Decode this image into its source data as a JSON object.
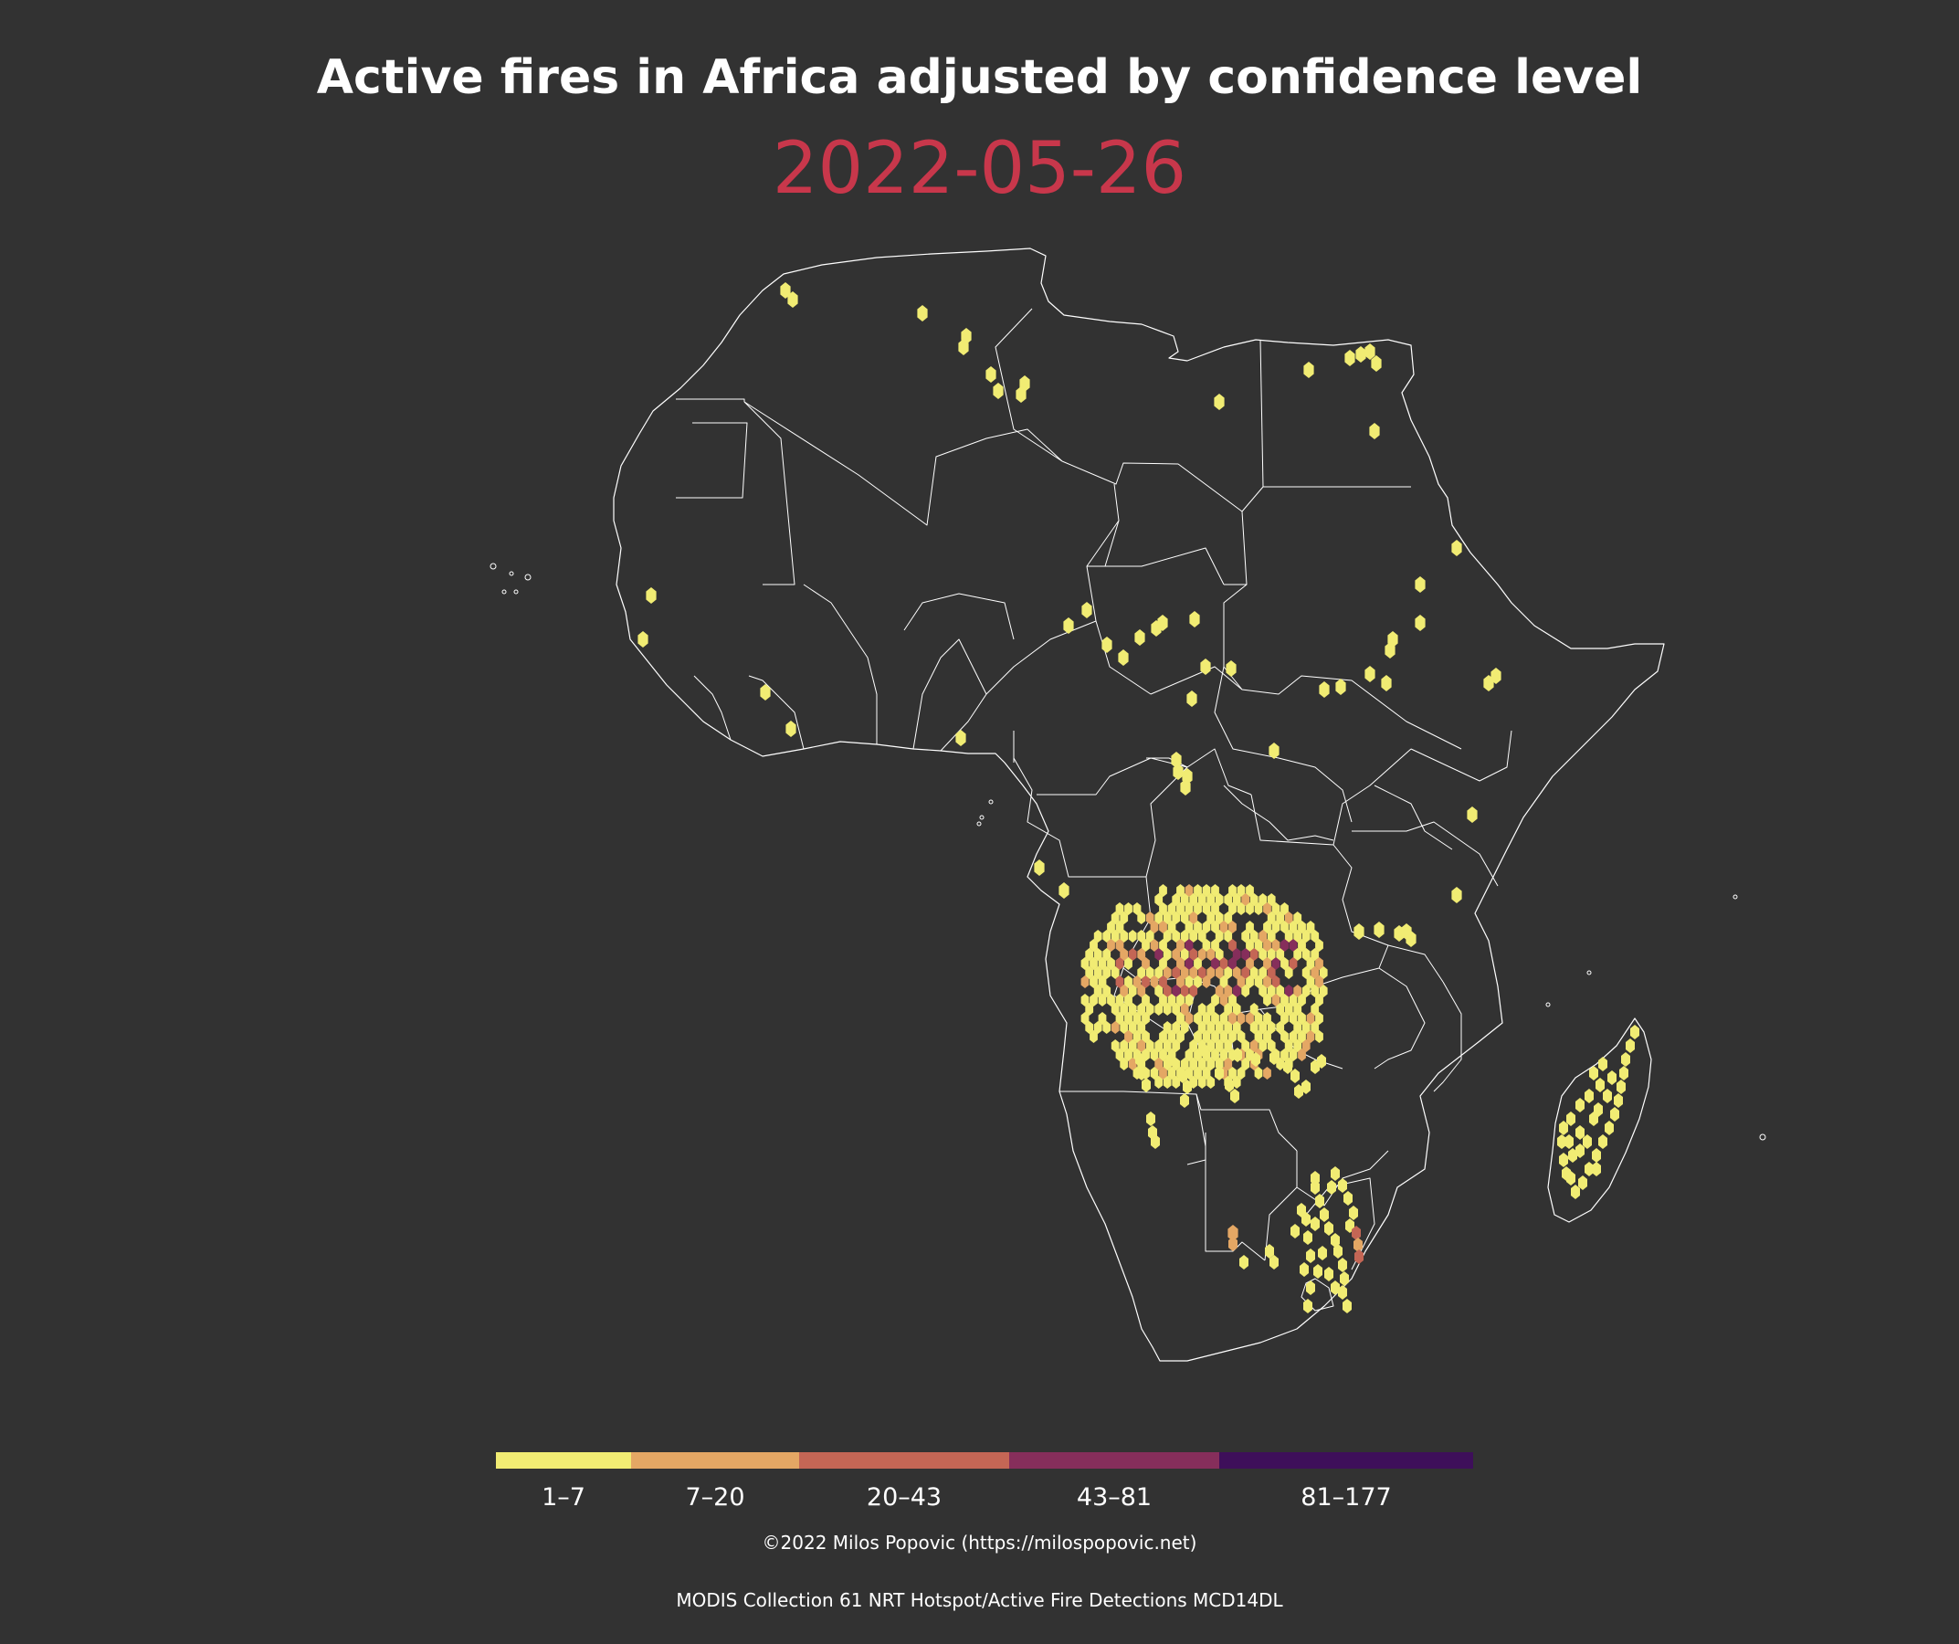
{
  "title": "Active fires in Africa adjusted by confidence level",
  "date": "2022-05-26",
  "credit": "©2022 Milos Popovic (https://milospopovic.net)",
  "source": "MODIS Collection 61 NRT Hotspot/Active Fire Detections MCD14DL",
  "legend": {
    "bins": [
      {
        "label": "1–7",
        "color": "#f1ec73"
      },
      {
        "label": "7–20",
        "color": "#e4a764"
      },
      {
        "label": "20–43",
        "color": "#c46655"
      },
      {
        "label": "43–81",
        "color": "#862e5b"
      },
      {
        "label": "81–177",
        "color": "#3e0f5a"
      }
    ]
  },
  "colors": {
    "background": "#323232",
    "land": "#323232",
    "borders": "#ffffff",
    "date": "#c8374b"
  }
}
